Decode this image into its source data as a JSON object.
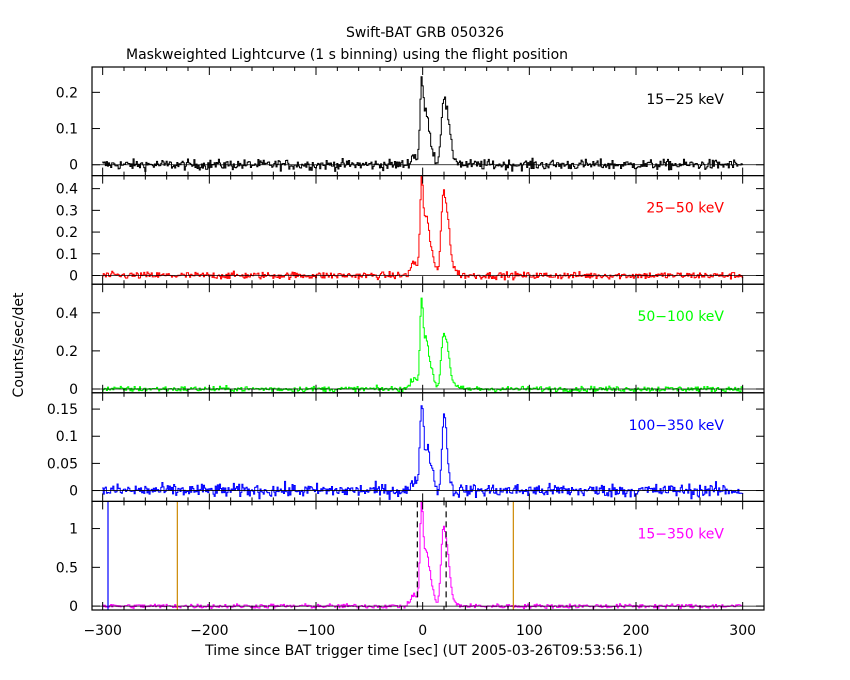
{
  "title": "Swift-BAT GRB 050326",
  "subtitle": "Maskweighted Lightcurve (1 s binning) using the flight position",
  "ylabel": "Counts/sec/det",
  "xlabel": "Time since BAT trigger time [sec] (UT 2005-03-26T09:53:56.1)",
  "chart_data": {
    "type": "line",
    "title": "Swift-BAT GRB 050326",
    "subtitle": "Maskweighted Lightcurve (1 s binning) using the flight position",
    "xlabel": "Time since BAT trigger time [sec] (UT 2005-03-26T09:53:56.1)",
    "ylabel": "Counts/sec/det",
    "xlim": [
      -310,
      320
    ],
    "x_ticks": [
      -300,
      -200,
      -100,
      0,
      100,
      200,
      300
    ],
    "x_tick_labels": [
      "−300",
      "−200",
      "−100",
      "0",
      "100",
      "200",
      "300"
    ],
    "grid": false,
    "panels": [
      {
        "band": "15−25 keV",
        "color": "#000000",
        "ylim": [
          -0.03,
          0.27
        ],
        "yticks": [
          0,
          0.1,
          0.2
        ],
        "ytick_labels": [
          "0",
          "0.1",
          "0.2"
        ],
        "noise": 0.007,
        "peaks": [
          {
            "t": -8,
            "h": 0.025,
            "w": 3
          },
          {
            "t": -1,
            "h": 0.22,
            "w": 1.5
          },
          {
            "t": 3,
            "h": 0.12,
            "w": 2
          },
          {
            "t": 7,
            "h": 0.06,
            "w": 3
          },
          {
            "t": 19,
            "h": 0.14,
            "w": 2
          },
          {
            "t": 23,
            "h": 0.12,
            "w": 2.5
          },
          {
            "t": 28,
            "h": 0.02,
            "w": 4
          }
        ]
      },
      {
        "band": "25−50 keV",
        "color": "#ff0000",
        "ylim": [
          -0.04,
          0.46
        ],
        "yticks": [
          0,
          0.1,
          0.2,
          0.3,
          0.4
        ],
        "ytick_labels": [
          "0",
          "0.1",
          "0.2",
          "0.3",
          "0.4"
        ],
        "noise": 0.008,
        "peaks": [
          {
            "t": -8,
            "h": 0.06,
            "w": 3
          },
          {
            "t": -1,
            "h": 0.42,
            "w": 1.5
          },
          {
            "t": 3,
            "h": 0.2,
            "w": 2
          },
          {
            "t": 7,
            "h": 0.14,
            "w": 3
          },
          {
            "t": 19,
            "h": 0.3,
            "w": 2
          },
          {
            "t": 23,
            "h": 0.25,
            "w": 2.5
          },
          {
            "t": 28,
            "h": 0.03,
            "w": 4
          }
        ]
      },
      {
        "band": "50−100 keV",
        "color": "#00ff00",
        "ylim": [
          -0.02,
          0.55
        ],
        "yticks": [
          0,
          0.2,
          0.4
        ],
        "ytick_labels": [
          "0",
          "0.2",
          "0.4"
        ],
        "noise": 0.007,
        "peaks": [
          {
            "t": -8,
            "h": 0.06,
            "w": 3
          },
          {
            "t": -1,
            "h": 0.45,
            "w": 1.5
          },
          {
            "t": 3,
            "h": 0.2,
            "w": 2
          },
          {
            "t": 7,
            "h": 0.12,
            "w": 3
          },
          {
            "t": 19,
            "h": 0.22,
            "w": 2
          },
          {
            "t": 23,
            "h": 0.2,
            "w": 2.5
          },
          {
            "t": 28,
            "h": 0.02,
            "w": 4
          }
        ]
      },
      {
        "band": "100−350 keV",
        "color": "#0000ff",
        "ylim": [
          -0.02,
          0.18
        ],
        "yticks": [
          0,
          0.05,
          0.1,
          0.15
        ],
        "ytick_labels": [
          "0",
          "0.05",
          "0.1",
          "0.15"
        ],
        "noise": 0.006,
        "peaks": [
          {
            "t": -6,
            "h": 0.02,
            "w": 3
          },
          {
            "t": -1,
            "h": 0.15,
            "w": 1.5
          },
          {
            "t": 3,
            "h": 0.06,
            "w": 2
          },
          {
            "t": 7,
            "h": 0.05,
            "w": 3
          },
          {
            "t": 20,
            "h": 0.13,
            "w": 1.8
          },
          {
            "t": 23,
            "h": 0.05,
            "w": 2
          }
        ]
      },
      {
        "band": "15−350 keV",
        "color": "#ff00ff",
        "ylim": [
          -0.05,
          1.35
        ],
        "yticks": [
          0,
          0.5,
          1
        ],
        "ytick_labels": [
          "0",
          "0.5",
          "1"
        ],
        "noise": 0.014,
        "peaks": [
          {
            "t": -8,
            "h": 0.15,
            "w": 3
          },
          {
            "t": -1,
            "h": 1.25,
            "w": 1.5
          },
          {
            "t": 3,
            "h": 0.55,
            "w": 2
          },
          {
            "t": 7,
            "h": 0.35,
            "w": 3
          },
          {
            "t": 19,
            "h": 0.8,
            "w": 2
          },
          {
            "t": 23,
            "h": 0.65,
            "w": 2.5
          },
          {
            "t": 28,
            "h": 0.05,
            "w": 4
          }
        ],
        "markers": [
          {
            "t": -295,
            "color": "#0000ff",
            "style": "solid"
          },
          {
            "t": -230,
            "color": "#cc8800",
            "style": "solid"
          },
          {
            "t": 85,
            "color": "#cc8800",
            "style": "solid"
          },
          {
            "t": -5,
            "color": "#000000",
            "style": "dashed"
          },
          {
            "t": 22,
            "color": "#000000",
            "style": "dashed"
          }
        ]
      }
    ]
  }
}
